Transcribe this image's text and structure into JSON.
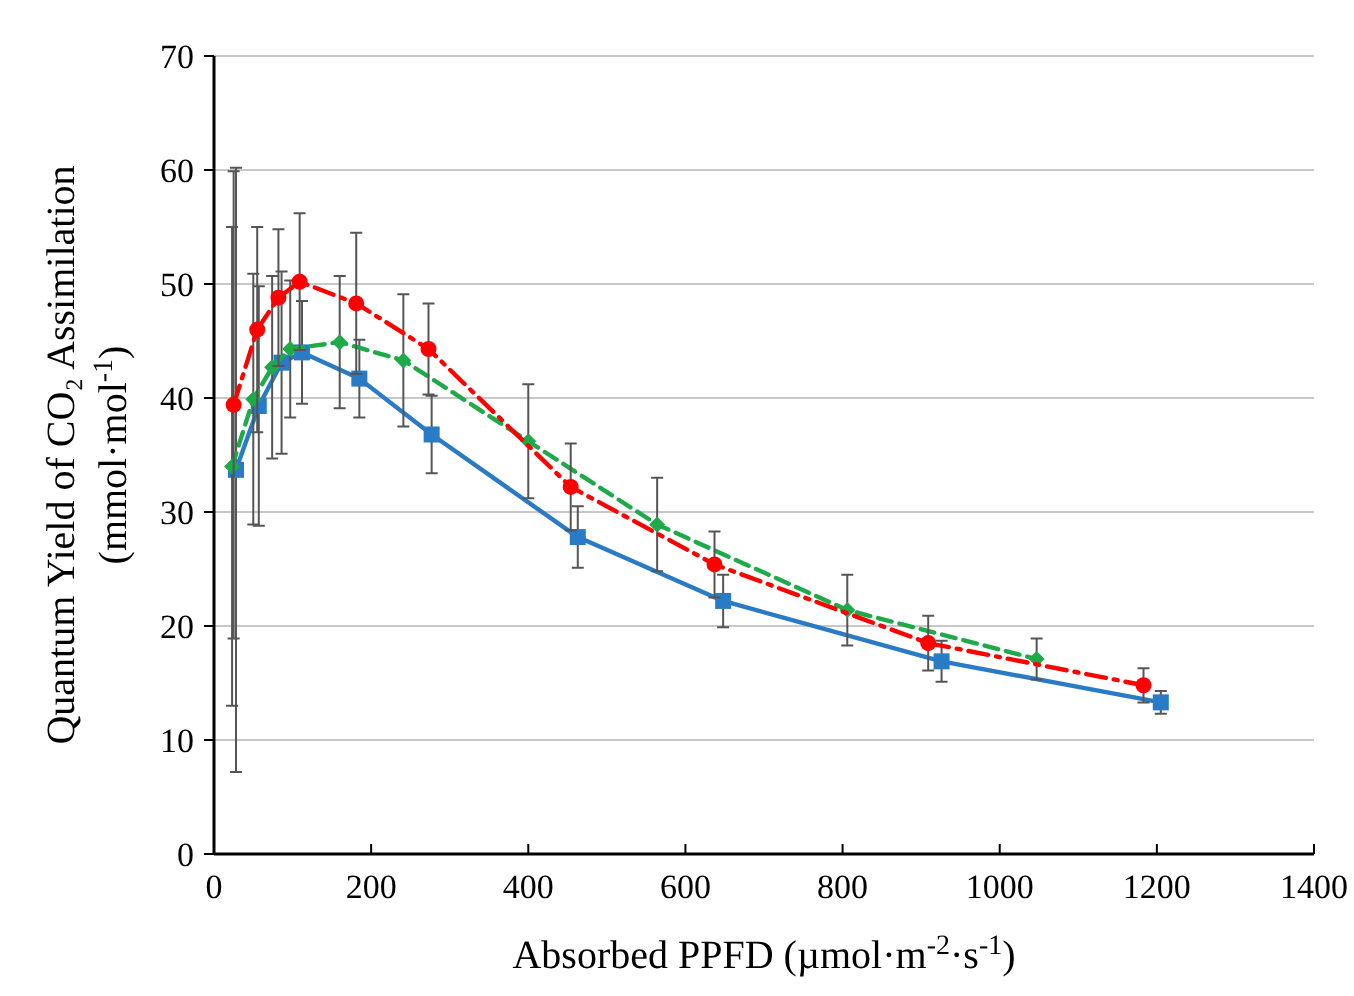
{
  "chart_data": {
    "type": "line",
    "xlabel": "Absorbed PPFD (µmol·m$^{-2}$·s$^{-1}$)",
    "ylabel": "Quantum Yield of CO₂ Assimilation\n(mmol·mol$^{-1}$)",
    "xlim": [
      0,
      1400
    ],
    "xticks": [
      0,
      200,
      400,
      600,
      800,
      1000,
      1200,
      1400
    ],
    "ylim": [
      0,
      70
    ],
    "yticks": [
      0,
      10,
      20,
      30,
      40,
      50,
      60,
      70
    ],
    "grid": "y",
    "series": [
      {
        "color": "#ff0000",
        "marker": "circle",
        "line_style": "dashdot",
        "x": [
          25,
          55,
          82,
          109,
          181,
          273,
          454,
          637,
          909,
          1183
        ],
        "values": [
          39.4,
          46.0,
          48.8,
          50.2,
          48.3,
          44.3,
          32.2,
          25.4,
          18.5,
          14.8
        ],
        "errors": [
          20.5,
          9,
          6,
          6,
          6.2,
          4,
          3.8,
          2.9,
          2.4,
          1.5
        ]
      },
      {
        "color": "#1faa4a",
        "marker": "diamond",
        "line_style": "dashed",
        "x": [
          23,
          50,
          74,
          97,
          160,
          241,
          400,
          564,
          806,
          1047
        ],
        "values": [
          34.0,
          39.9,
          42.7,
          44.3,
          44.9,
          43.3,
          36.2,
          28.9,
          21.4,
          17.1
        ],
        "errors": [
          21,
          11,
          8,
          6,
          5.8,
          5.8,
          5,
          4.1,
          3.1,
          1.8
        ]
      },
      {
        "color": "#2a7bc6",
        "marker": "square",
        "line_style": "solid",
        "x": [
          28,
          57,
          86,
          112,
          185,
          277,
          463,
          648,
          926,
          1205
        ],
        "values": [
          33.7,
          39.3,
          43.1,
          44.0,
          41.7,
          36.8,
          27.8,
          22.2,
          16.9,
          13.3
        ],
        "errors": [
          26.5,
          10.5,
          8,
          4.5,
          3.4,
          3.4,
          2.7,
          2.3,
          1.8,
          1
        ]
      }
    ]
  }
}
